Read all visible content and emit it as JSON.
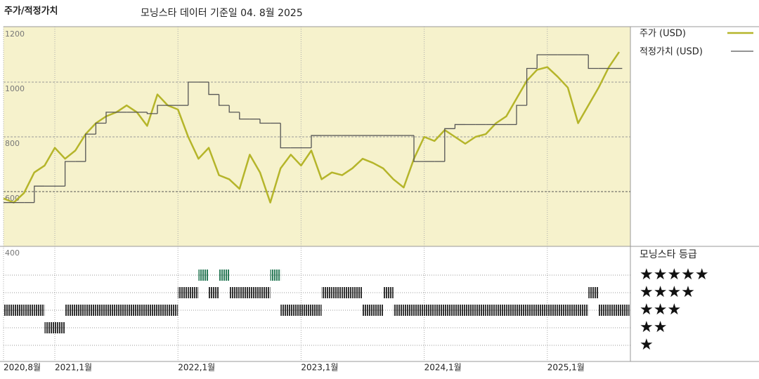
{
  "chart_data": {
    "type": "line",
    "title": "주가/적정가치",
    "subtitle": "모닝스타 데이터 기준일 04. 8월 2025",
    "categories": [
      "2020,8월",
      null,
      null,
      null,
      null,
      "2021,1월",
      null,
      null,
      null,
      null,
      null,
      null,
      null,
      null,
      null,
      null,
      null,
      "2022,1월",
      null,
      null,
      null,
      null,
      null,
      null,
      null,
      null,
      null,
      null,
      null,
      "2023,1월",
      null,
      null,
      null,
      null,
      null,
      null,
      null,
      null,
      null,
      null,
      null,
      "2024,1월",
      null,
      null,
      null,
      null,
      null,
      null,
      null,
      null,
      null,
      null,
      null,
      "2025,1월",
      null,
      null,
      null,
      null,
      null,
      null,
      null
    ],
    "series": [
      {
        "name": "주가 (USD)",
        "color": "#b5b52a",
        "values": [
          575,
          560,
          595,
          670,
          695,
          760,
          720,
          750,
          810,
          850,
          875,
          890,
          915,
          890,
          840,
          955,
          915,
          900,
          800,
          720,
          760,
          660,
          645,
          610,
          735,
          670,
          560,
          685,
          735,
          695,
          750,
          645,
          670,
          660,
          685,
          720,
          705,
          685,
          645,
          615,
          720,
          800,
          785,
          825,
          800,
          775,
          800,
          810,
          850,
          875,
          940,
          1005,
          1045,
          1055,
          1020,
          980,
          850,
          915,
          980,
          1055,
          1110
        ]
      },
      {
        "name": "적정가치 (USD)",
        "color": "#555555",
        "step": true,
        "values": [
          560,
          560,
          560,
          620,
          620,
          620,
          710,
          710,
          810,
          850,
          890,
          890,
          890,
          890,
          885,
          915,
          915,
          915,
          1000,
          1000,
          955,
          915,
          890,
          865,
          865,
          850,
          850,
          760,
          760,
          760,
          805,
          805,
          805,
          805,
          805,
          805,
          805,
          805,
          805,
          805,
          710,
          710,
          710,
          830,
          845,
          845,
          845,
          845,
          845,
          845,
          915,
          1050,
          1100,
          1100,
          1100,
          1100,
          1100,
          1050,
          1050,
          1050,
          1050
        ]
      }
    ],
    "ylim": [
      400,
      1200
    ],
    "yticks": [
      400,
      600,
      800,
      1000,
      1200
    ],
    "grid": true,
    "ratings": {
      "title": "모닝스타 등급",
      "color": "#333333",
      "top_color": "#2e7d5b",
      "values": [
        3,
        3,
        3,
        3,
        2,
        2,
        3,
        3,
        3,
        3,
        3,
        3,
        3,
        3,
        3,
        3,
        3,
        4,
        4,
        5,
        4,
        5,
        4,
        4,
        4,
        4,
        5,
        3,
        3,
        3,
        3,
        4,
        4,
        4,
        4,
        3,
        3,
        4,
        3,
        3,
        3,
        3,
        3,
        3,
        3,
        3,
        3,
        3,
        3,
        3,
        3,
        3,
        3,
        3,
        3,
        3,
        3,
        4,
        3,
        3,
        3
      ],
      "yticks": [
        {
          "value": 5,
          "label": "★★★★★"
        },
        {
          "value": 4,
          "label": "★★★★"
        },
        {
          "value": 3,
          "label": "★★★"
        },
        {
          "value": 2,
          "label": "★★"
        },
        {
          "value": 1,
          "label": "★"
        }
      ]
    }
  }
}
